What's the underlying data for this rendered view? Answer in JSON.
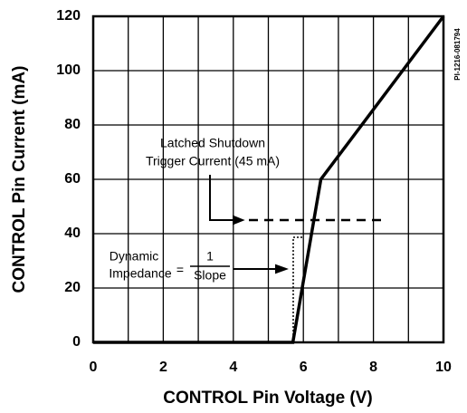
{
  "chart_data": {
    "type": "line",
    "x_label": "CONTROL Pin Voltage (V)",
    "y_label": "CONTROL Pin Current (mA)",
    "x": [
      0,
      5.7,
      6.5,
      10
    ],
    "values": [
      0,
      0,
      60,
      120
    ],
    "color": "#000000",
    "xlim": [
      0,
      10
    ],
    "xticks": [
      0,
      2,
      4,
      6,
      8,
      10
    ],
    "ylim": [
      0,
      120
    ],
    "yticks": [
      0,
      20,
      40,
      60,
      80,
      100,
      120
    ],
    "grid": true,
    "threshold": 45,
    "annotations": {
      "latched_line1": "Latched Shutdown",
      "latched_line2": "Trigger Current (45 mA)",
      "dynamic": "Dynamic",
      "impedance": "Impedance",
      "equals": "=",
      "one": "1",
      "slope": "Slope"
    },
    "figure_id": "PI-1216-081794"
  }
}
